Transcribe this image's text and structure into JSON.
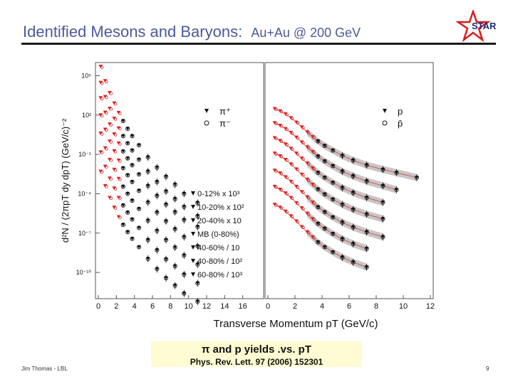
{
  "slide": {
    "title": "Identified Mesons and Baryons:",
    "subtitle": "Au+Au @ 200 GeV",
    "logo_text": "STAR",
    "caption_main": "π and p yields .vs. pT",
    "caption_ref": "Phys. Rev. Lett. 97 (2006) 152301",
    "footer_left": "Jim Thomas - LBL",
    "footer_right": "9"
  },
  "colors": {
    "title": "#4a5a9a",
    "accent_red": "#e02020",
    "caption_bg": "#fffbd2",
    "band": "#b9b9b9"
  },
  "chart_data": {
    "type": "scatter",
    "ylabel": "d²N / (2πpT dy dpT) (GeV/c)⁻²",
    "xlabel": "Transverse Momentum pT (GeV/c)",
    "ylog": true,
    "ylim": [
      1e-12,
      1000000.0
    ],
    "y_ticks": [
      "10⁵",
      "10²",
      "10⁻¹",
      "10⁻⁴",
      "10⁻⁷",
      "10⁻¹⁰"
    ],
    "centralities": [
      "0-12% x 10³",
      "10-20% x 10²",
      "20-40% x 10",
      "MB (0-80%)",
      "40-60% / 10",
      "40-80% / 10²",
      "60-80% / 10³"
    ],
    "panels": [
      {
        "particles": [
          "π⁺",
          "π⁻"
        ],
        "xlim": [
          0,
          18
        ],
        "x_ticks": [
          "0",
          "2",
          "4",
          "6",
          "8",
          "10",
          "12",
          "14",
          "16"
        ],
        "series": [
          {
            "label": "0-12% x 10³",
            "x": [
              0.25,
              0.75,
              1.25,
              1.75,
              2.25,
              2.75,
              3.25,
              3.75,
              4.5,
              5.5,
              6.5,
              7.5,
              8.5,
              9.5,
              11.0
            ],
            "y": [
              500000,
              40000,
              5000,
              800,
              150,
              35,
              9,
              2.5,
              0.5,
              0.06,
              0.01,
              0.002,
              0.0005,
              0.0001,
              2e-05
            ]
          },
          {
            "label": "10-20% x 10²",
            "x": [
              0.25,
              0.75,
              1.25,
              1.75,
              2.25,
              2.75,
              3.25,
              3.75,
              4.5,
              5.5,
              6.5,
              7.5,
              8.5,
              9.5,
              11.0
            ],
            "y": [
              30000,
              2500,
              320,
              55,
              10,
              2.5,
              0.7,
              0.2,
              0.04,
              0.005,
              0.0008,
              0.00015,
              4e-05,
              1e-05,
              2e-06
            ]
          },
          {
            "label": "20-40% x 10",
            "x": [
              0.25,
              0.75,
              1.25,
              1.75,
              2.25,
              2.75,
              3.25,
              3.75,
              4.5,
              5.5,
              6.5,
              7.5,
              8.5,
              9.5,
              11.0
            ],
            "y": [
              2000,
              160,
              20,
              3.5,
              0.7,
              0.17,
              0.05,
              0.015,
              0.003,
              0.0004,
              7e-05,
              1.5e-05,
              4e-06,
              1e-06,
              3e-07
            ]
          },
          {
            "label": "MB (0-80%)",
            "x": [
              0.25,
              0.75,
              1.25,
              1.75,
              2.25,
              2.75,
              3.25,
              3.75,
              4.5,
              5.5,
              6.5,
              7.5,
              8.5,
              9.5,
              11.0
            ],
            "y": [
              100,
              8,
              1,
              0.18,
              0.035,
              0.009,
              0.0026,
              0.0008,
              0.00017,
              2.2e-05,
              3.8e-06,
              8e-07,
              2e-07,
              5e-08,
              1e-08
            ]
          },
          {
            "label": "40-60% / 10",
            "x": [
              0.25,
              0.75,
              1.25,
              1.75,
              2.25,
              2.75,
              3.25,
              3.75,
              4.5,
              5.5,
              6.5,
              7.5,
              8.5,
              9.5,
              11.0
            ],
            "y": [
              4,
              0.3,
              0.04,
              0.007,
              0.0014,
              0.00035,
              0.0001,
              3e-05,
              7e-06,
              9e-07,
              1.5e-07,
              3e-08,
              8e-09,
              2e-09,
              4e-10
            ]
          },
          {
            "label": "40-80% / 10²",
            "x": [
              0.25,
              0.75,
              1.25,
              1.75,
              2.25,
              2.75,
              3.25,
              3.75,
              4.5,
              5.5,
              6.5,
              7.5,
              8.5,
              9.5,
              11.0
            ],
            "y": [
              0.15,
              0.012,
              0.0015,
              0.00026,
              5e-05,
              1.3e-05,
              3.7e-06,
              1.1e-06,
              2.5e-07,
              3e-08,
              5e-09,
              1e-09,
              3e-10,
              7e-11,
              1.5e-11
            ]
          },
          {
            "label": "60-80% / 10³",
            "x": [
              0.25,
              0.75,
              1.25,
              1.75,
              2.25,
              2.75,
              3.25,
              3.75,
              4.5,
              5.5,
              6.5,
              7.5,
              8.5,
              9.5,
              11.0
            ],
            "y": [
              0.005,
              0.0004,
              5e-05,
              9e-06,
              1.7e-06,
              4.3e-07,
              1.2e-07,
              3.7e-08,
              8.5e-09,
              1.1e-09,
              1.8e-10,
              3.7e-11,
              1e-11,
              2.5e-12,
              6e-13
            ]
          }
        ]
      },
      {
        "particles": [
          "p",
          "p̄"
        ],
        "xlim": [
          0,
          12
        ],
        "x_ticks": [
          "0",
          "2",
          "4",
          "6",
          "8",
          "10",
          "12"
        ],
        "series": [
          {
            "label": "0-12% x 10³",
            "x": [
              0.5,
              0.9,
              1.3,
              1.7,
              2.1,
              2.5,
              2.9,
              3.3,
              3.7,
              4.2,
              4.8,
              5.5,
              6.3,
              7.3,
              8.5,
              9.5,
              11.0
            ],
            "y": [
              300,
              200,
              120,
              60,
              28,
              12,
              5,
              2.2,
              1,
              0.45,
              0.2,
              0.08,
              0.035,
              0.015,
              0.007,
              0.004,
              0.0017
            ]
          },
          {
            "label": "10-20% x 10²",
            "x": [
              0.5,
              0.9,
              1.3,
              1.7,
              2.1,
              2.5,
              2.9,
              3.3,
              3.7,
              4.2,
              4.8,
              5.5,
              6.3,
              7.3,
              8.5,
              9.5
            ],
            "y": [
              25,
              16,
              9,
              4.5,
              2,
              0.85,
              0.36,
              0.16,
              0.07,
              0.03,
              0.013,
              0.005,
              0.0022,
              0.0009,
              0.0004,
              0.0002
            ]
          },
          {
            "label": "20-40% x 10",
            "x": [
              0.5,
              0.9,
              1.3,
              1.7,
              2.1,
              2.5,
              2.9,
              3.3,
              3.7,
              4.2,
              4.8,
              5.5,
              6.3,
              7.3,
              8.5
            ],
            "y": [
              1.8,
              1.1,
              0.6,
              0.28,
              0.12,
              0.05,
              0.021,
              0.009,
              0.004,
              0.0017,
              0.0007,
              0.00028,
              0.00012,
              5e-05,
              2.2e-05
            ]
          },
          {
            "label": "MB (0-80%)",
            "x": [
              0.5,
              0.9,
              1.3,
              1.7,
              2.1,
              2.5,
              2.9,
              3.3,
              3.7,
              4.2,
              4.8,
              5.5,
              6.3,
              7.3,
              8.5
            ],
            "y": [
              0.12,
              0.075,
              0.04,
              0.018,
              0.0075,
              0.003,
              0.0012,
              0.0005,
              0.00022,
              9e-05,
              3.7e-05,
              1.5e-05,
              6.3e-06,
              2.7e-06,
              1.2e-06
            ]
          },
          {
            "label": "40-60% / 10",
            "x": [
              0.5,
              0.9,
              1.3,
              1.7,
              2.1,
              2.5,
              2.9,
              3.3,
              3.7,
              4.2,
              4.8,
              5.5,
              6.3,
              7.3,
              8.5
            ],
            "y": [
              0.006,
              0.0037,
              0.0019,
              0.00085,
              0.00035,
              0.00014,
              5.5e-05,
              2.2e-05,
              9.5e-06,
              4e-06,
              1.6e-06,
              6.5e-07,
              2.8e-07,
              1.2e-07,
              5e-08
            ]
          },
          {
            "label": "40-80% / 10²",
            "x": [
              0.5,
              0.9,
              1.3,
              1.7,
              2.1,
              2.5,
              2.9,
              3.3,
              3.7,
              4.2,
              4.8,
              5.5,
              6.3,
              7.3
            ],
            "y": [
              0.00035,
              0.00021,
              0.00011,
              5e-05,
              2e-05,
              8e-06,
              3.1e-06,
              1.2e-06,
              5.2e-07,
              2.2e-07,
              8.8e-08,
              3.5e-08,
              1.5e-08,
              6.5e-09
            ]
          },
          {
            "label": "60-80% / 10³",
            "x": [
              0.5,
              0.9,
              1.3,
              1.7,
              2.1,
              2.5,
              2.9,
              3.3,
              3.7,
              4.2,
              4.8,
              5.5,
              6.3,
              7.3
            ],
            "y": [
              1.5e-05,
              9e-06,
              4.5e-06,
              2e-06,
              8e-07,
              3e-07,
              1.2e-07,
              5e-08,
              2e-08,
              8.5e-09,
              3.5e-09,
              1.4e-09,
              6e-10,
              2.5e-10
            ]
          }
        ]
      }
    ]
  }
}
